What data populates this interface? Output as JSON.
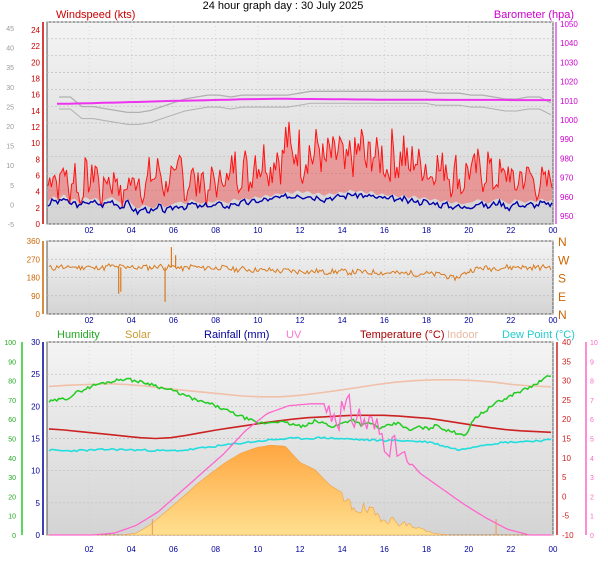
{
  "title": "24 hour graph day : 30 July 2025",
  "colors": {
    "windspeed": "#cc0000",
    "wind_fill": "#ff1010",
    "barometer": "#cc00cc",
    "barometer_line": "#ee33ee",
    "baro_old": "#b0b0b0",
    "winddir": "#d97a1e",
    "humidity": "#22cc22",
    "solar": "#ffb347",
    "rainfall": "#000099",
    "uv": "#ff66cc",
    "temperature": "#cc2222",
    "indoor": "#f0c0a8",
    "dewpoint": "#22dddd",
    "plot_bg_top": "#f6f6f6",
    "plot_bg_bottom": "#d6d6d6"
  },
  "chart_data": [
    {
      "type": "line",
      "name": "wind-barometer",
      "x_ticks": [
        "02",
        "04",
        "06",
        "08",
        "10",
        "12",
        "14",
        "16",
        "18",
        "20",
        "22",
        "00"
      ],
      "left_outer_ticks": [
        "45",
        "40",
        "35",
        "30",
        "25",
        "20",
        "15",
        "10",
        "5",
        "0",
        "-5"
      ],
      "left_label": "Windspeed (kts)",
      "left_ticks": [
        "24",
        "22",
        "20",
        "18",
        "16",
        "14",
        "12",
        "10",
        "8",
        "6",
        "4",
        "2",
        "0"
      ],
      "right_label": "Barometer (hpa)",
      "right_ticks": [
        "1050",
        "1040",
        "1030",
        "1020",
        "1010",
        "1000",
        "990",
        "980",
        "970",
        "960",
        "950"
      ],
      "xlim": [
        0,
        24
      ],
      "windspeed_ylim": [
        0,
        25
      ],
      "barometer_ylim": [
        945,
        1050
      ],
      "windspeed_max_kts": [
        6,
        9,
        5,
        10,
        4,
        9,
        3,
        8,
        6,
        10,
        3,
        8,
        6,
        8,
        3,
        7,
        6,
        8,
        4,
        8,
        7,
        9,
        5,
        8,
        6,
        10,
        4,
        9,
        5,
        9,
        3,
        8,
        5,
        9,
        6,
        10,
        7,
        10,
        6,
        11,
        9,
        11,
        8,
        12,
        9,
        14,
        10,
        13,
        9,
        12,
        10,
        13,
        9,
        11,
        10,
        12,
        8,
        11,
        10,
        13,
        9,
        12,
        10,
        11,
        8,
        12,
        9,
        12,
        8,
        11,
        9,
        10,
        7,
        10,
        8,
        10,
        6,
        9,
        5,
        9,
        8,
        9,
        7,
        10,
        6,
        8,
        7,
        9,
        5,
        8,
        7,
        8,
        5,
        7,
        6,
        8
      ],
      "windspeed_avg_kts": [
        2.5,
        3.2,
        2.8,
        3.5,
        2.6,
        2.9,
        2.2,
        3.1,
        2.7,
        3.0,
        2.4,
        2.8,
        3.1,
        2.6,
        2.2,
        2.9,
        2.0,
        1.5,
        2.1,
        1.8,
        1.6,
        2.4,
        1.7,
        2.0,
        2.3,
        2.5,
        2.1,
        2.8,
        2.4,
        2.2,
        2.6,
        2.3,
        2.7,
        2.5,
        2.2,
        2.9,
        2.6,
        3.0,
        2.7,
        3.2,
        2.9,
        3.4,
        3.1,
        3.6,
        3.4,
        3.8,
        3.5,
        4.0,
        3.6,
        3.9,
        3.4,
        3.7,
        3.2,
        3.6,
        3.4,
        3.8,
        3.6,
        4.1,
        3.7,
        4.0,
        3.5,
        3.9,
        3.3,
        3.6,
        3.2,
        3.5,
        3.0,
        3.4,
        2.9,
        3.3,
        2.8,
        3.1,
        2.6,
        2.9,
        2.4,
        2.7,
        2.2,
        2.5,
        2.1,
        2.3,
        2.4,
        2.8,
        2.6,
        2.2,
        2.7,
        2.9,
        2.5,
        2.1,
        2.8,
        2.6,
        2.3,
        2.7,
        2.4,
        2.9,
        2.5,
        2.7
      ],
      "barometer_hpa": [
        1007.5,
        1007.5,
        1007.7,
        1007.8,
        1008.0,
        1008.1,
        1008.3,
        1008.4,
        1008.6,
        1008.8,
        1009.0,
        1009.1,
        1009.2,
        1009.3,
        1009.5,
        1009.6,
        1009.8,
        1009.9,
        1010.0,
        1010.1,
        1010.1,
        1010.0,
        1010.0,
        1009.9,
        1009.8,
        1009.8,
        1009.7,
        1009.7,
        1009.6,
        1009.6,
        1009.6,
        1009.6,
        1009.6,
        1009.6,
        1009.5,
        1009.5,
        1009.5,
        1009.5,
        1009.5,
        1009.5,
        1009.4,
        1009.4,
        1009.4,
        1009.4
      ],
      "barometer_old_hpa": [
        1011,
        1011,
        1006,
        1006,
        1005,
        1004,
        1003,
        1003,
        1004,
        1006,
        1008,
        1010,
        1011,
        1012,
        1012,
        1011,
        1012,
        1012,
        1012,
        1012,
        1012,
        1013,
        1014,
        1014,
        1014,
        1014,
        1014,
        1014,
        1014,
        1014,
        1014,
        1014,
        1014,
        1013,
        1013,
        1013,
        1012,
        1012,
        1011,
        1010,
        1010,
        1011,
        1011,
        1008
      ]
    },
    {
      "type": "line",
      "name": "wind-direction",
      "x_ticks": [
        "02",
        "04",
        "06",
        "08",
        "10",
        "12",
        "14",
        "16",
        "18",
        "20",
        "22",
        "00"
      ],
      "left_ticks": [
        "360",
        "270",
        "180",
        "90",
        "0"
      ],
      "right_ticks": [
        "N",
        "W",
        "S",
        "E",
        "N"
      ],
      "ylim": [
        0,
        360
      ],
      "direction_deg": [
        230,
        225,
        240,
        220,
        235,
        230,
        228,
        238,
        222,
        232,
        226,
        240,
        230,
        235,
        225,
        242,
        220,
        236,
        228,
        230,
        240,
        226,
        232,
        235,
        222,
        228,
        236,
        230,
        225,
        232,
        224,
        230,
        226,
        222,
        218,
        224,
        220,
        215,
        222,
        212,
        218,
        214,
        210,
        216,
        212,
        208,
        214,
        206,
        210,
        212,
        204,
        210,
        208,
        212,
        206,
        204,
        210,
        206,
        202,
        208,
        204,
        200,
        206,
        202,
        198,
        204,
        200,
        196,
        202,
        198,
        194,
        200,
        188,
        176,
        180,
        195,
        210,
        220,
        225,
        228,
        222,
        230,
        226,
        232,
        228,
        235,
        230,
        226,
        232,
        228,
        234,
        230
      ],
      "spikes": [
        [
          3.4,
          100
        ],
        [
          3.5,
          110
        ],
        [
          5.6,
          60
        ],
        [
          5.9,
          330
        ],
        [
          6.1,
          290
        ]
      ]
    },
    {
      "type": "line",
      "name": "temperature-humidity-solar",
      "x_ticks": [
        "02",
        "04",
        "06",
        "08",
        "10",
        "12",
        "14",
        "16",
        "18",
        "20",
        "22",
        "00"
      ],
      "legend": [
        "Humidity",
        "Solar",
        "Rainfall (mm)",
        "UV",
        "Temperature (°C)",
        "Indoor",
        "Dew Point (°C)"
      ],
      "humidity_ticks": [
        "100",
        "90",
        "80",
        "70",
        "60",
        "50",
        "40",
        "30",
        "20",
        "10",
        "0"
      ],
      "rainfall_ticks": [
        "30",
        "25",
        "20",
        "15",
        "10",
        "5",
        "0"
      ],
      "temperature_ticks": [
        "40",
        "35",
        "30",
        "25",
        "20",
        "15",
        "10",
        "5",
        "0",
        "-5",
        "-10"
      ],
      "uv_ticks": [
        "10",
        "9",
        "8",
        "7",
        "6",
        "5",
        "4",
        "3",
        "2",
        "1",
        "0"
      ],
      "humidity_ylim": [
        0,
        100
      ],
      "temperature_ylim": [
        -10,
        40
      ],
      "uv_ylim": [
        0,
        10
      ],
      "humidity_pct": [
        69,
        70,
        71,
        74,
        76,
        78,
        79,
        80,
        81,
        80,
        79,
        78,
        76,
        75,
        73,
        71,
        69,
        68,
        66,
        64,
        62,
        60,
        58,
        58,
        59,
        58,
        57,
        56,
        59,
        58,
        56,
        58,
        60,
        57,
        58,
        55,
        57,
        58,
        54,
        56,
        55,
        57,
        54,
        53,
        52,
        61,
        64,
        68,
        70,
        73,
        75,
        77,
        80,
        83
      ],
      "temperature_c": [
        17.5,
        17.2,
        16.8,
        16.4,
        16.0,
        15.6,
        15.2,
        15.0,
        15.2,
        15.8,
        16.5,
        17.2,
        17.8,
        18.4,
        19.0,
        19.5,
        20.0,
        20.4,
        20.6,
        20.8,
        21.0,
        21.0,
        21.0,
        20.8,
        20.5,
        20.2,
        19.6,
        19.0,
        18.4,
        17.8,
        17.3,
        17.0,
        16.8,
        16.6
      ],
      "indoor_c": [
        28.5,
        28.8,
        29.0,
        29.2,
        29.0,
        28.6,
        28.0,
        27.5,
        27.0,
        26.5,
        26.0,
        25.8,
        25.8,
        26.2,
        26.8,
        27.5,
        28.2,
        29.0,
        29.6,
        30.0,
        30.2,
        30.2,
        30.0,
        29.6,
        29.0,
        28.6,
        28.4
      ],
      "dewpoint_c": [
        12.0,
        11.8,
        11.9,
        12.0,
        12.2,
        12.1,
        12.0,
        11.9,
        11.8,
        12.0,
        12.5,
        13.0,
        13.5,
        14.0,
        14.4,
        14.8,
        15.0,
        15.0,
        15.2,
        15.0,
        14.8,
        14.6,
        14.5,
        14.5,
        14.3,
        14.1,
        13.0,
        12.0,
        13.0,
        13.6,
        14.0,
        14.2,
        14.4,
        14.6
      ],
      "uv_index": [
        0,
        0,
        0,
        0.1,
        0.5,
        1.2,
        2.2,
        3.2,
        4.2,
        5.4,
        6.3,
        6.7,
        6.8,
        6.8,
        6.6,
        5.8,
        4.5,
        3.2,
        2.4,
        1.6,
        0.9,
        0.3,
        0,
        0
      ],
      "solar_rel": [
        0,
        0,
        0,
        0,
        0,
        0,
        0.02,
        0.12,
        0.26,
        0.4,
        0.55,
        0.68,
        0.8,
        0.9,
        0.96,
        0.99,
        0.98,
        0.8,
        0.72,
        0.55,
        0.45,
        0.38,
        0.3,
        0.22,
        0.16,
        0.1,
        0.02,
        0,
        0,
        0,
        0,
        0,
        0,
        0,
        0
      ],
      "rainfall_mm": []
    }
  ]
}
